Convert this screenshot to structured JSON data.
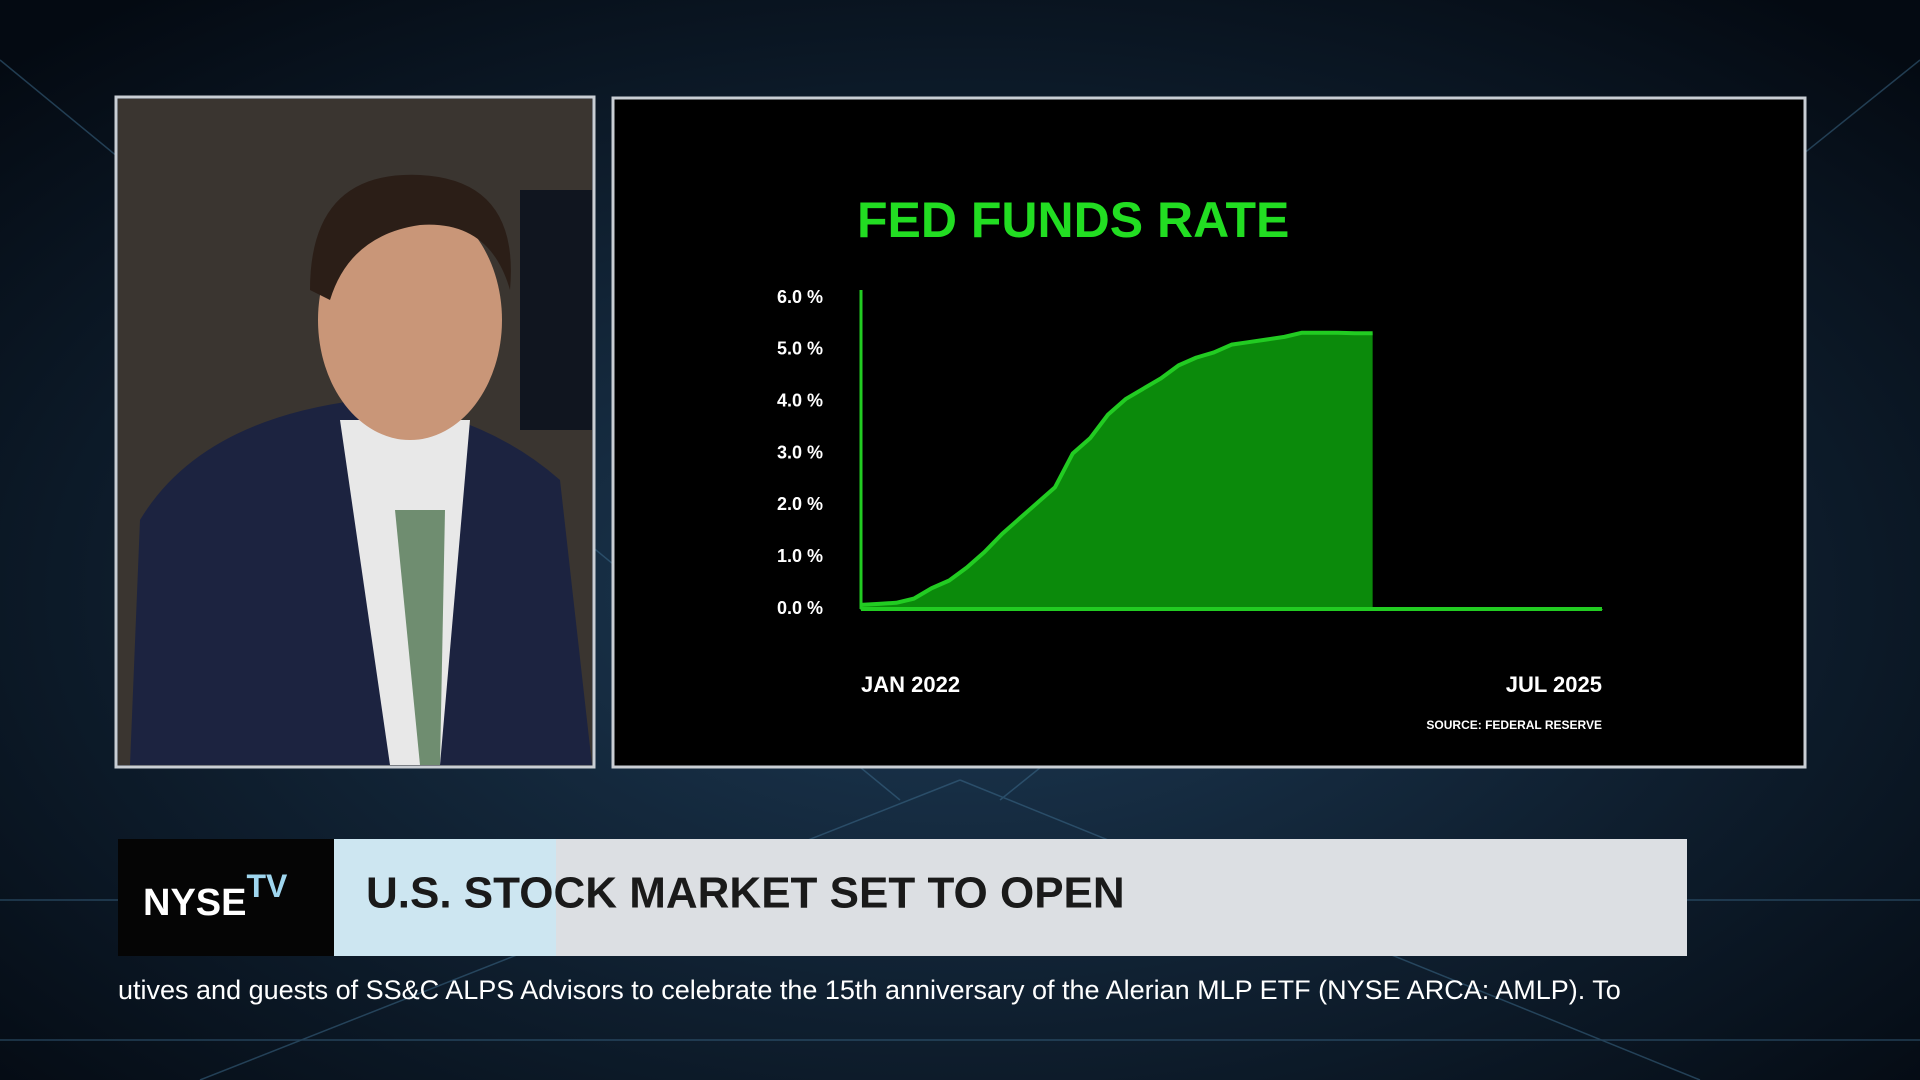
{
  "chart_data": {
    "type": "area",
    "title": "FED FUNDS RATE",
    "source": "SOURCE: FEDERAL RESERVE",
    "x": [
      "2022-01",
      "2022-02",
      "2022-03",
      "2022-04",
      "2022-05",
      "2022-06",
      "2022-07",
      "2022-08",
      "2022-09",
      "2022-10",
      "2022-11",
      "2022-12",
      "2023-01",
      "2023-02",
      "2023-03",
      "2023-04",
      "2023-05",
      "2023-06",
      "2023-07",
      "2023-08",
      "2023-09",
      "2023-10",
      "2023-11",
      "2023-12",
      "2024-01",
      "2024-02",
      "2024-03",
      "2024-04",
      "2024-05",
      "2024-06"
    ],
    "series": [
      {
        "name": "Fed Funds Rate",
        "color": "#22cc22",
        "fill": "#0b8a0b",
        "values": [
          0.08,
          0.1,
          0.12,
          0.2,
          0.4,
          0.55,
          0.8,
          1.1,
          1.45,
          1.75,
          2.05,
          2.35,
          3.0,
          3.3,
          3.75,
          4.05,
          4.25,
          4.45,
          4.7,
          4.85,
          4.95,
          5.1,
          5.15,
          5.2,
          5.25,
          5.33,
          5.33,
          5.33,
          5.32,
          5.32
        ]
      }
    ],
    "xlim": [
      "2022-01",
      "2025-07"
    ],
    "xticks": [
      {
        "value": "2022-01",
        "label": "JAN 2022"
      },
      {
        "value": "2025-07",
        "label": "JUL 2025"
      }
    ],
    "ylim": [
      0,
      6
    ],
    "yticks": [
      {
        "value": 0,
        "label": "0.0 %"
      },
      {
        "value": 1,
        "label": "1.0 %"
      },
      {
        "value": 2,
        "label": "2.0 %"
      },
      {
        "value": 3,
        "label": "3.0 %"
      },
      {
        "value": 4,
        "label": "4.0 %"
      },
      {
        "value": 5,
        "label": "5.0 %"
      },
      {
        "value": 6,
        "label": "6.0 %"
      }
    ],
    "grid": false
  },
  "lower_third": {
    "logo": "NYSE",
    "logo_sup": "TV",
    "headline": "U.S. STOCK MARKET SET TO OPEN"
  },
  "ticker": {
    "text": "utives and guests of SS&C ALPS Advisors to celebrate the 15th anniversary of the Alerian MLP ETF (NYSE ARCA: AMLP). To"
  }
}
